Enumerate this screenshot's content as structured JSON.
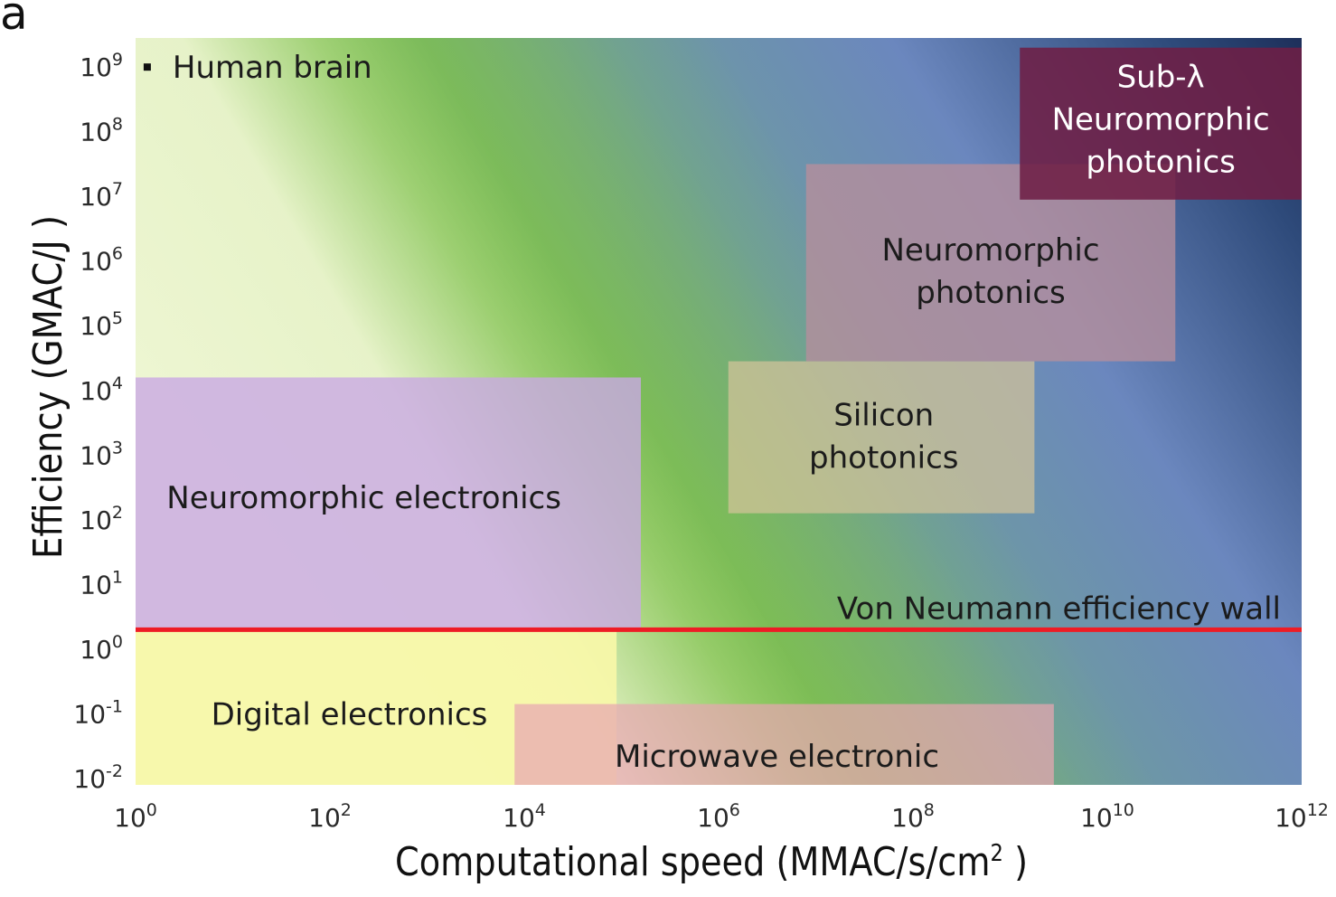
{
  "panel_label": "a",
  "chart_data": {
    "type": "scatter",
    "title": "",
    "xlabel": "Computational speed (MMAC/s/cm",
    "xlabel_sup": "2",
    "xlabel_end": " )",
    "ylabel": "Efficiency (GMAC/J )",
    "x_scale": "log",
    "y_scale": "log",
    "x_ticks": [
      {
        "base": "10",
        "exp": "0"
      },
      {
        "base": "10",
        "exp": "2"
      },
      {
        "base": "10",
        "exp": "4"
      },
      {
        "base": "10",
        "exp": "6"
      },
      {
        "base": "10",
        "exp": "8"
      },
      {
        "base": "10",
        "exp": "10"
      },
      {
        "base": "10",
        "exp": "12"
      }
    ],
    "y_ticks": [
      {
        "base": "10",
        "exp": "9"
      },
      {
        "base": "10",
        "exp": "8"
      },
      {
        "base": "10",
        "exp": "7"
      },
      {
        "base": "10",
        "exp": "6"
      },
      {
        "base": "10",
        "exp": "5"
      },
      {
        "base": "10",
        "exp": "4"
      },
      {
        "base": "10",
        "exp": "3"
      },
      {
        "base": "10",
        "exp": "2"
      },
      {
        "base": "10",
        "exp": "1"
      },
      {
        "base": "10",
        "exp": "0"
      },
      {
        "base": "10",
        "exp": "-1"
      },
      {
        "base": "10",
        "exp": "-2"
      }
    ],
    "xlim": [
      0,
      12
    ],
    "ylim": [
      -2.1,
      9.45
    ],
    "regions": [
      {
        "name": "Digital electronics",
        "lines": [
          "Digital electronics"
        ],
        "x_range": [
          0,
          4.95
        ],
        "y_range": [
          -2.1,
          0.3
        ],
        "fill": "#f7f7a8",
        "opacity": 0.92,
        "label_at": [
          2.2,
          -1.0
        ],
        "text_color": "#1b1b1b"
      },
      {
        "name": "Microwave electronic",
        "lines": [
          "Microwave electronic"
        ],
        "x_range": [
          3.9,
          9.45
        ],
        "y_range": [
          -2.1,
          -0.85
        ],
        "fill": "#e8a6b2",
        "opacity": 0.72,
        "label_at": [
          6.6,
          -1.65
        ],
        "text_color": "#1b1b1b"
      },
      {
        "name": "Neuromorphic electronics",
        "lines": [
          "Neuromorphic electronics"
        ],
        "x_range": [
          0,
          5.2
        ],
        "y_range": [
          0.3,
          4.2
        ],
        "fill": "#c9a9e4",
        "opacity": 0.8,
        "label_at": [
          2.35,
          2.35
        ],
        "text_color": "#1b1b1b"
      },
      {
        "name": "Silicon photonics",
        "lines": [
          "Silicon",
          "photonics"
        ],
        "x_range": [
          6.1,
          9.25
        ],
        "y_range": [
          2.1,
          4.45
        ],
        "fill": "#d4c49a",
        "opacity": 0.72,
        "label_at": [
          7.7,
          3.3
        ],
        "text_color": "#1b1b1b"
      },
      {
        "name": "Neuromorphic photonics",
        "lines": [
          "Neuromorphic",
          "photonics"
        ],
        "x_range": [
          6.9,
          10.7
        ],
        "y_range": [
          4.45,
          7.5
        ],
        "fill": "#b58f9c",
        "opacity": 0.8,
        "label_at": [
          8.8,
          5.85
        ],
        "text_color": "#1b1b1b"
      },
      {
        "name": "Sub-λ Neuromorphic photonics",
        "lines": [
          "Sub-λ",
          "Neuromorphic",
          "photonics"
        ],
        "x_range": [
          9.1,
          12.0
        ],
        "y_range": [
          6.95,
          9.3
        ],
        "fill": "#6e1f45",
        "opacity": 0.88,
        "label_at": [
          10.55,
          8.2
        ],
        "text_color": "#ffffff"
      }
    ],
    "point": {
      "label": "Human brain",
      "x": 0.12,
      "y": 9.0
    },
    "hline": {
      "label": "Von Neumann efficiency wall",
      "y": 0.3,
      "color": "#ee1c25"
    }
  }
}
